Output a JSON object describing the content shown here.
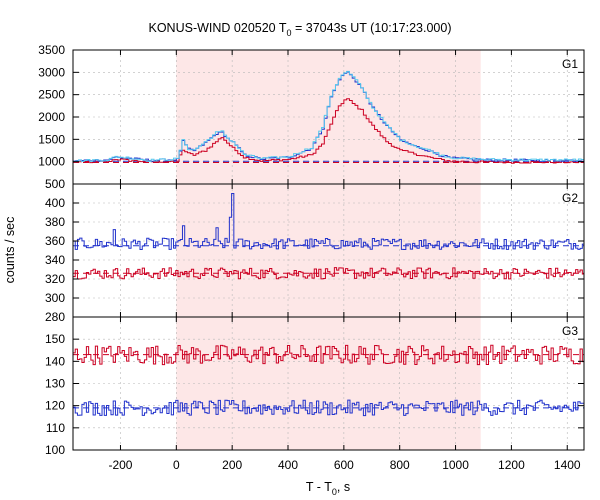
{
  "chart_data": {
    "type": "line",
    "title": {
      "main": "KONUS-WIND 020520 T",
      "sub": "0",
      "rest": " = 37043s UT (10:17:23.000)"
    },
    "xlabel": {
      "main": "T - T",
      "sub": "0",
      "rest": ", s"
    },
    "ylabel": "counts / sec",
    "xlim": [
      -370,
      1460
    ],
    "xticks": [
      -200,
      0,
      200,
      400,
      600,
      800,
      1000,
      1200,
      1400
    ],
    "shaded_interval": [
      0,
      1090
    ],
    "colors": {
      "shade": "#fde7e7",
      "red": "#cc0022",
      "blue": "#2233cc",
      "cyan": "#55c8ee",
      "grid": "#b8b8b8"
    },
    "panels": [
      {
        "name": "G1",
        "ylim": [
          500,
          3500
        ],
        "yticks": [
          500,
          1000,
          1500,
          2000,
          2500,
          3000,
          3500
        ],
        "baselines": {
          "blue": 1010,
          "red": 980
        },
        "series": [
          {
            "color": "red",
            "x": [
              -370,
              -250,
              -220,
              -180,
              -100,
              0,
              20,
              40,
              60,
              100,
              140,
              160,
              180,
              200,
              240,
              300,
              400,
              480,
              520,
              550,
              580,
              600,
              610,
              630,
              660,
              700,
              750,
              800,
              850,
              900,
              940,
              980,
              1100,
              1300,
              1460
            ],
            "y": [
              990,
              1000,
              1060,
              1030,
              1000,
              1010,
              1270,
              1180,
              1150,
              1250,
              1450,
              1550,
              1420,
              1300,
              1100,
              1020,
              1050,
              1150,
              1400,
              1850,
              2250,
              2380,
              2400,
              2300,
              2150,
              1800,
              1450,
              1250,
              1180,
              1100,
              1050,
              1010,
              990,
              990,
              990
            ]
          },
          {
            "color": "blue",
            "x": [
              -370,
              -250,
              -220,
              -180,
              -100,
              0,
              20,
              40,
              60,
              100,
              140,
              160,
              180,
              200,
              240,
              300,
              400,
              480,
              520,
              550,
              580,
              600,
              610,
              630,
              660,
              700,
              750,
              800,
              850,
              900,
              940,
              980,
              1100,
              1300,
              1460
            ],
            "y": [
              1020,
              1040,
              1100,
              1080,
              1030,
              1050,
              1450,
              1280,
              1250,
              1420,
              1630,
              1650,
              1520,
              1430,
              1150,
              1060,
              1100,
              1300,
              1750,
              2450,
              2850,
              2980,
              3000,
              2880,
              2650,
              2200,
              1800,
              1480,
              1350,
              1250,
              1150,
              1080,
              1040,
              1030,
              1030
            ]
          },
          {
            "color": "cyan",
            "x": [
              -370,
              -250,
              -220,
              -180,
              -100,
              0,
              20,
              40,
              60,
              100,
              140,
              160,
              180,
              200,
              240,
              300,
              400,
              480,
              520,
              550,
              580,
              600,
              610,
              630,
              660,
              700,
              750,
              800,
              850,
              900,
              940,
              980,
              1100,
              1300,
              1460
            ],
            "y": [
              1020,
              1040,
              1110,
              1090,
              1030,
              1060,
              1470,
              1290,
              1260,
              1440,
              1650,
              1670,
              1530,
              1440,
              1160,
              1070,
              1110,
              1320,
              1780,
              2480,
              2870,
              2990,
              3010,
              2890,
              2660,
              2210,
              1810,
              1490,
              1360,
              1260,
              1160,
              1090,
              1050,
              1040,
              1040
            ]
          }
        ]
      },
      {
        "name": "G2",
        "ylim": [
          280,
          420
        ],
        "yticks": [
          280,
          300,
          320,
          340,
          360,
          380,
          400
        ],
        "baselines": {
          "blue": 355,
          "red": 326
        },
        "spikes": [
          {
            "x": -225,
            "y": 372
          },
          {
            "x": 20,
            "y": 376
          },
          {
            "x": 140,
            "y": 374
          },
          {
            "x": 190,
            "y": 385
          },
          {
            "x": 195,
            "y": 410
          }
        ],
        "series": [
          {
            "color": "blue",
            "mean": 357,
            "noise": 6
          },
          {
            "color": "red",
            "mean": 326,
            "noise": 6
          }
        ]
      },
      {
        "name": "G3",
        "ylim": [
          100,
          160
        ],
        "yticks": [
          100,
          110,
          120,
          130,
          140,
          150
        ],
        "baselines": {
          "blue": 119,
          "red": 143
        },
        "series": [
          {
            "color": "red",
            "mean": 143,
            "noise": 4.5
          },
          {
            "color": "blue",
            "mean": 119,
            "noise": 3.5
          }
        ]
      }
    ]
  }
}
